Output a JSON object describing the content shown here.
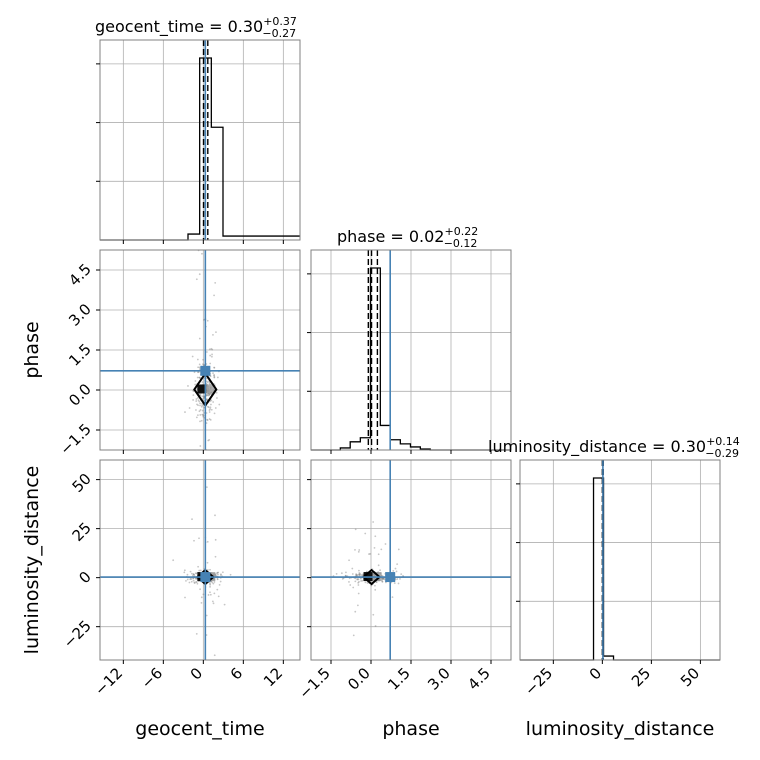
{
  "chart_data": {
    "type": "corner",
    "parameters": [
      "geocent_time",
      "phase",
      "luminosity_distance"
    ],
    "truths": [
      0.3,
      0.72,
      0.3
    ],
    "truth_color": "#4682b4",
    "hist_color": "#000000",
    "sample_color": "#808080",
    "grid": true,
    "axes": {
      "geocent_time": {
        "range": [
          -15.5,
          14.5
        ],
        "ticks": [
          -12,
          -6,
          0,
          6,
          12
        ],
        "tick_labels": [
          "−12",
          "−6",
          "0",
          "6",
          "12"
        ]
      },
      "phase": {
        "range": [
          -2.25,
          5.25
        ],
        "ticks": [
          -1.5,
          0.0,
          1.5,
          3.0,
          4.5
        ],
        "tick_labels": [
          "−1.5",
          "0.0",
          "1.5",
          "3.0",
          "4.5"
        ]
      },
      "luminosity_distance": {
        "range": [
          -42,
          60
        ],
        "ticks": [
          -25,
          0,
          25,
          50
        ],
        "tick_labels": [
          "−25",
          "0",
          "25",
          "50"
        ]
      }
    },
    "titles": [
      {
        "param": "geocent_time",
        "prefix": "geocent_time = 0.30",
        "plus": "+0.37",
        "minus": "−0.27"
      },
      {
        "param": "phase",
        "prefix": "phase = 0.02",
        "plus": "+0.22",
        "minus": "−0.12"
      },
      {
        "param": "luminosity_distance",
        "prefix": "luminosity_distance = 0.30",
        "plus": "+0.14",
        "minus": "−0.29"
      }
    ],
    "quantiles": {
      "geocent_time": [
        0.03,
        0.3,
        0.67
      ],
      "phase": [
        -0.1,
        0.02,
        0.24
      ],
      "luminosity_distance": [
        0.01,
        0.3,
        0.44
      ]
    },
    "histograms": {
      "geocent_time": {
        "edges": [
          -15.5,
          -2.3,
          -0.55,
          1.2,
          2.95,
          14.5
        ],
        "counts": [
          0,
          0.03,
          0.92,
          0.57,
          0.02
        ]
      },
      "phase": {
        "edges": [
          -2.25,
          -1.15,
          -0.78,
          -0.4,
          -0.02,
          0.35,
          0.72,
          1.1,
          1.48,
          1.85,
          2.22,
          5.25
        ],
        "counts": [
          0,
          0.01,
          0.04,
          0.06,
          0.89,
          0.12,
          0.05,
          0.03,
          0.015,
          0.005,
          0
        ]
      },
      "luminosity_distance": {
        "edges": [
          -42,
          -4.5,
          0.6,
          5.7,
          60
        ],
        "counts": [
          0,
          0.92,
          0.02,
          0
        ]
      }
    },
    "pairs": [
      {
        "x": "geocent_time",
        "y": "phase",
        "x_spread": 0.9,
        "y_spread": 0.55,
        "y_tail": 2.4
      },
      {
        "x": "geocent_time",
        "y": "luminosity_distance",
        "x_spread": 1.2,
        "y_spread": 1.5,
        "y_tail": 14
      },
      {
        "x": "phase",
        "y": "luminosity_distance",
        "x_spread": 0.5,
        "y_spread": 1.5,
        "y_tail": 12
      }
    ]
  }
}
